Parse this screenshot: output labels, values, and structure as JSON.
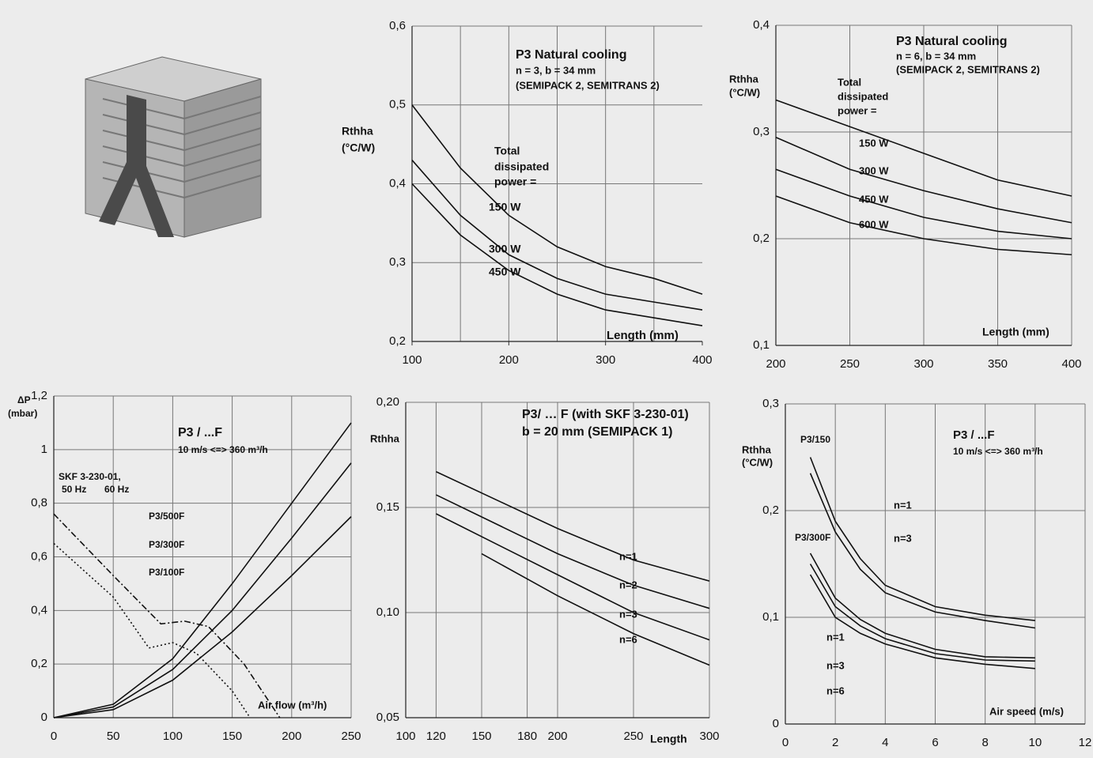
{
  "chart_data": [
    {
      "type": "line",
      "title": "P3 Natural cooling",
      "subtitle": [
        "n = 3, b = 34 mm",
        "(SEMIPACK 2, SEMITRANS 2)"
      ],
      "ylabel": [
        "Rthha",
        "(°C/W)"
      ],
      "xlabel": "Length (mm)",
      "annotation": [
        "Total",
        "dissipated",
        "power  ="
      ],
      "xlim": [
        100,
        400
      ],
      "xticks": [
        100,
        200,
        300,
        400
      ],
      "xgrid": [
        150,
        200,
        250,
        300,
        350
      ],
      "ylim": [
        0.2,
        0.6
      ],
      "yticks": [
        {
          "value": 0.2,
          "label": "0,2"
        },
        {
          "value": 0.3,
          "label": "0,3"
        },
        {
          "value": 0.4,
          "label": "0,4"
        },
        {
          "value": 0.5,
          "label": "0,5"
        },
        {
          "value": 0.6,
          "label": "0,6"
        }
      ],
      "grid": true,
      "series": [
        {
          "name": "150 W",
          "color": "#111111",
          "x": [
            100,
            150,
            200,
            250,
            300,
            350,
            400
          ],
          "values": [
            0.5,
            0.42,
            0.36,
            0.32,
            0.295,
            0.28,
            0.26
          ]
        },
        {
          "name": "300 W",
          "color": "#111111",
          "x": [
            100,
            150,
            200,
            250,
            300,
            350,
            400
          ],
          "values": [
            0.43,
            0.36,
            0.31,
            0.28,
            0.26,
            0.25,
            0.24
          ]
        },
        {
          "name": "450 W",
          "color": "#111111",
          "x": [
            100,
            150,
            200,
            250,
            300,
            350,
            400
          ],
          "values": [
            0.4,
            0.335,
            0.29,
            0.26,
            0.24,
            0.23,
            0.22
          ]
        }
      ]
    },
    {
      "type": "line",
      "title": "P3 Natural cooling",
      "subtitle": [
        "n = 6, b = 34 mm",
        "(SEMIPACK 2, SEMITRANS 2)"
      ],
      "ylabel": [
        "Rthha",
        "(°C/W)"
      ],
      "xlabel": "Length (mm)",
      "annotation": [
        "Total",
        "dissipated",
        "power  ="
      ],
      "xlim": [
        200,
        400
      ],
      "xticks": [
        200,
        250,
        300,
        350,
        400
      ],
      "ylim": [
        0.1,
        0.4
      ],
      "yticks": [
        {
          "value": 0.1,
          "label": "0,1"
        },
        {
          "value": 0.2,
          "label": "0,2"
        },
        {
          "value": 0.3,
          "label": "0,3"
        },
        {
          "value": 0.4,
          "label": "0,4"
        }
      ],
      "grid": true,
      "series": [
        {
          "name": "150 W",
          "color": "#111111",
          "x": [
            200,
            250,
            300,
            350,
            400
          ],
          "values": [
            0.33,
            0.305,
            0.28,
            0.255,
            0.24
          ]
        },
        {
          "name": "300 W",
          "color": "#111111",
          "x": [
            200,
            250,
            300,
            350,
            400
          ],
          "values": [
            0.295,
            0.265,
            0.245,
            0.228,
            0.215
          ]
        },
        {
          "name": "450 W",
          "color": "#111111",
          "x": [
            200,
            250,
            300,
            350,
            400
          ],
          "values": [
            0.265,
            0.24,
            0.22,
            0.207,
            0.2
          ]
        },
        {
          "name": "600 W",
          "color": "#111111",
          "x": [
            200,
            250,
            300,
            350,
            400
          ],
          "values": [
            0.24,
            0.215,
            0.2,
            0.19,
            0.185
          ]
        }
      ]
    },
    {
      "type": "line",
      "title": "P3 / ...F",
      "subtitle": [
        "10 m/s <=> 360 m³/h"
      ],
      "ylabel": [
        "ΔP",
        "(mbar)"
      ],
      "xlabel": "Air flow (m³/h)",
      "annotation": [
        "SKF 3-230-01,"
      ],
      "xlim": [
        0,
        250
      ],
      "xticks": [
        0,
        50,
        100,
        150,
        200,
        250
      ],
      "ylim": [
        0,
        1.2
      ],
      "yticks": [
        0,
        {
          "value": 0.2,
          "label": "0,2"
        },
        {
          "value": 0.4,
          "label": "0,4"
        },
        {
          "value": 0.6,
          "label": "0,6"
        },
        {
          "value": 0.8,
          "label": "0,8"
        },
        1,
        {
          "value": 1.2,
          "label": "1,2"
        }
      ],
      "grid": true,
      "series": [
        {
          "name": "P3/500F",
          "color": "#111111",
          "line_style": "solid",
          "x": [
            0,
            50,
            100,
            150,
            200,
            250
          ],
          "values": [
            0,
            0.05,
            0.22,
            0.5,
            0.8,
            1.1
          ]
        },
        {
          "name": "P3/300F",
          "color": "#111111",
          "line_style": "solid",
          "x": [
            0,
            50,
            100,
            150,
            200,
            250
          ],
          "values": [
            0,
            0.04,
            0.18,
            0.4,
            0.67,
            0.95
          ]
        },
        {
          "name": "P3/100F",
          "color": "#111111",
          "line_style": "solid",
          "x": [
            0,
            50,
            100,
            150,
            200,
            250
          ],
          "values": [
            0,
            0.03,
            0.14,
            0.32,
            0.53,
            0.75
          ]
        },
        {
          "name": "50 Hz",
          "color": "#111111",
          "line_style": "dotted",
          "x": [
            0,
            50,
            80,
            100,
            120,
            150,
            165
          ],
          "values": [
            0.65,
            0.45,
            0.26,
            0.28,
            0.24,
            0.1,
            0
          ]
        },
        {
          "name": "60 Hz",
          "color": "#111111",
          "line_style": "dash-dot",
          "x": [
            0,
            50,
            90,
            110,
            130,
            160,
            190
          ],
          "values": [
            0.76,
            0.53,
            0.35,
            0.36,
            0.34,
            0.2,
            0
          ]
        }
      ]
    },
    {
      "type": "line",
      "title": "P3/ … F (with SKF 3-230-01)",
      "subtitle": [
        "b = 20 mm (SEMIPACK 1)"
      ],
      "ylabel": [
        "Rthha"
      ],
      "xlabel": "Length",
      "xlim": [
        100,
        300
      ],
      "xticks": [
        100,
        120,
        150,
        180,
        200,
        250,
        300
      ],
      "ylim": [
        0.05,
        0.2
      ],
      "yticks": [
        {
          "value": 0.05,
          "label": "0,05"
        },
        {
          "value": 0.1,
          "label": "0,10"
        },
        {
          "value": 0.15,
          "label": "0,15"
        },
        {
          "value": 0.2,
          "label": "0,20"
        }
      ],
      "grid": true,
      "series": [
        {
          "name": "n=1",
          "color": "#111111",
          "x": [
            120,
            200,
            250,
            300
          ],
          "values": [
            0.167,
            0.14,
            0.125,
            0.115
          ]
        },
        {
          "name": "n=2",
          "color": "#111111",
          "x": [
            120,
            200,
            250,
            300
          ],
          "values": [
            0.156,
            0.128,
            0.113,
            0.102
          ]
        },
        {
          "name": "n=3",
          "color": "#111111",
          "x": [
            120,
            200,
            250,
            300
          ],
          "values": [
            0.147,
            0.118,
            0.1,
            0.087
          ]
        },
        {
          "name": "n=6",
          "color": "#111111",
          "x": [
            150,
            200,
            250,
            300
          ],
          "values": [
            0.128,
            0.108,
            0.09,
            0.075
          ]
        }
      ]
    },
    {
      "type": "line",
      "title": "P3 / ...F",
      "subtitle": [
        "10 m/s <=> 360 m³/h"
      ],
      "ylabel": [
        "Rthha",
        "(°C/W)"
      ],
      "xlabel": "Air speed (m/s)",
      "annotation": [
        "P3/150",
        "P3/300F"
      ],
      "xlim": [
        0,
        12
      ],
      "xticks": [
        0,
        2,
        4,
        6,
        8,
        10,
        12
      ],
      "ylim": [
        0,
        0.3
      ],
      "yticks": [
        0,
        {
          "value": 0.1,
          "label": "0,1"
        },
        {
          "value": 0.2,
          "label": "0,2"
        },
        {
          "value": 0.3,
          "label": "0,3"
        }
      ],
      "grid": true,
      "series": [
        {
          "name": "n=1",
          "color": "#111111",
          "x": [
            1,
            2,
            3,
            4,
            6,
            8,
            10
          ],
          "values": [
            0.25,
            0.19,
            0.155,
            0.13,
            0.11,
            0.102,
            0.097
          ]
        },
        {
          "name": "n=3",
          "color": "#111111",
          "x": [
            1,
            2,
            3,
            4,
            6,
            8,
            10
          ],
          "values": [
            0.235,
            0.18,
            0.145,
            0.123,
            0.105,
            0.097,
            0.09
          ]
        },
        {
          "name": "n=1",
          "color": "#111111",
          "x": [
            1,
            2,
            3,
            4,
            6,
            8,
            10
          ],
          "values": [
            0.16,
            0.118,
            0.098,
            0.085,
            0.07,
            0.063,
            0.062
          ]
        },
        {
          "name": "n=3",
          "color": "#111111",
          "x": [
            1,
            2,
            3,
            4,
            6,
            8,
            10
          ],
          "values": [
            0.15,
            0.11,
            0.092,
            0.08,
            0.066,
            0.06,
            0.059
          ]
        },
        {
          "name": "n=6",
          "color": "#111111",
          "x": [
            1,
            2,
            3,
            4,
            6,
            8,
            10
          ],
          "values": [
            0.14,
            0.1,
            0.085,
            0.075,
            0.062,
            0.056,
            0.052
          ]
        }
      ]
    }
  ]
}
